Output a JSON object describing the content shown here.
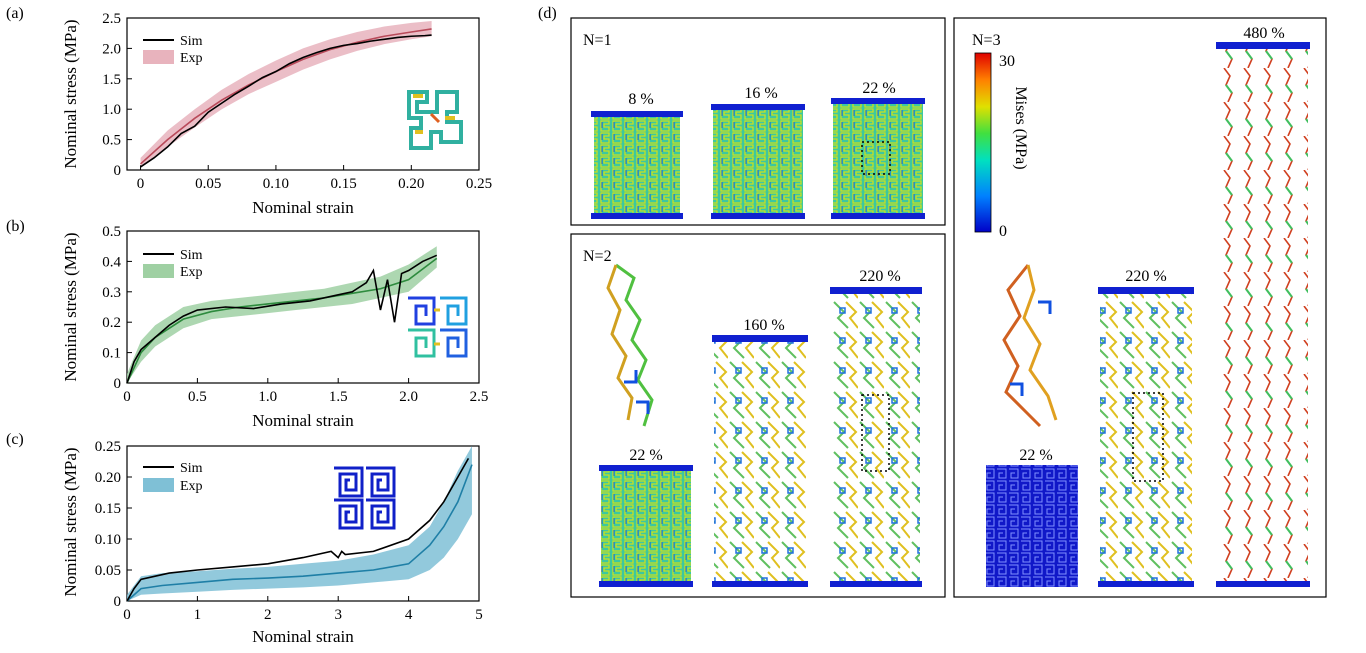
{
  "chart_data": [
    {
      "panel": "(a)",
      "type": "line",
      "xlabel": "Nominal strain",
      "ylabel": "Nominal stress (MPa)",
      "xlim": [
        -0.01,
        0.25
      ],
      "ylim": [
        0,
        2.5
      ],
      "xticks": [
        "0",
        "0.05",
        "0.10",
        "0.15",
        "0.20",
        "0.25"
      ],
      "yticks": [
        "0",
        "0.5",
        "1.0",
        "1.5",
        "2.0",
        "2.5"
      ],
      "legend": [
        "Sim",
        "Exp"
      ],
      "series": [
        {
          "name": "Sim",
          "color": "#000000",
          "x": [
            0,
            0.01,
            0.02,
            0.03,
            0.04,
            0.05,
            0.06,
            0.07,
            0.08,
            0.09,
            0.1,
            0.11,
            0.12,
            0.13,
            0.14,
            0.15,
            0.16,
            0.17,
            0.18,
            0.19,
            0.2,
            0.21,
            0.215
          ],
          "y": [
            0.05,
            0.2,
            0.38,
            0.6,
            0.72,
            0.95,
            1.1,
            1.25,
            1.38,
            1.52,
            1.62,
            1.75,
            1.85,
            1.93,
            2.0,
            2.05,
            2.08,
            2.12,
            2.15,
            2.18,
            2.2,
            2.21,
            2.22
          ]
        },
        {
          "name": "Exp",
          "color": "#b94a5a",
          "band_color": "#e8b3bd",
          "x": [
            0,
            0.02,
            0.04,
            0.06,
            0.08,
            0.1,
            0.12,
            0.14,
            0.16,
            0.18,
            0.2,
            0.215
          ],
          "y": [
            0.1,
            0.5,
            0.85,
            1.15,
            1.4,
            1.62,
            1.82,
            1.98,
            2.1,
            2.2,
            2.27,
            2.32
          ],
          "lower": [
            0.05,
            0.38,
            0.7,
            1.0,
            1.25,
            1.45,
            1.65,
            1.82,
            1.96,
            2.07,
            2.15,
            2.2
          ],
          "upper": [
            0.2,
            0.65,
            1.0,
            1.32,
            1.58,
            1.8,
            2.0,
            2.15,
            2.27,
            2.36,
            2.42,
            2.45
          ]
        }
      ]
    },
    {
      "panel": "(b)",
      "type": "line",
      "xlabel": "Nominal strain",
      "ylabel": "Nominal stress (MPa)",
      "xlim": [
        0,
        2.5
      ],
      "ylim": [
        0,
        0.5
      ],
      "xticks": [
        "0",
        "0.5",
        "1.0",
        "1.5",
        "2.0",
        "2.5"
      ],
      "yticks": [
        "0",
        "0.1",
        "0.2",
        "0.3",
        "0.4",
        "0.5"
      ],
      "legend": [
        "Sim",
        "Exp"
      ],
      "series": [
        {
          "name": "Sim",
          "color": "#000000",
          "x": [
            0,
            0.05,
            0.1,
            0.2,
            0.3,
            0.4,
            0.5,
            0.7,
            0.9,
            1.1,
            1.3,
            1.5,
            1.6,
            1.7,
            1.75,
            1.8,
            1.85,
            1.9,
            1.95,
            2.0,
            2.1,
            2.2
          ],
          "y": [
            0,
            0.07,
            0.11,
            0.15,
            0.19,
            0.22,
            0.24,
            0.25,
            0.245,
            0.26,
            0.27,
            0.29,
            0.3,
            0.33,
            0.37,
            0.24,
            0.34,
            0.2,
            0.36,
            0.37,
            0.4,
            0.42
          ]
        },
        {
          "name": "Exp",
          "color": "#2e8b3e",
          "band_color": "#9fd0a3",
          "x": [
            0,
            0.1,
            0.2,
            0.4,
            0.6,
            0.8,
            1.0,
            1.2,
            1.4,
            1.6,
            1.8,
            2.0,
            2.2
          ],
          "y": [
            0,
            0.1,
            0.15,
            0.21,
            0.235,
            0.25,
            0.26,
            0.27,
            0.28,
            0.295,
            0.31,
            0.34,
            0.41
          ],
          "lower": [
            0,
            0.07,
            0.12,
            0.18,
            0.21,
            0.22,
            0.23,
            0.24,
            0.25,
            0.26,
            0.28,
            0.3,
            0.38
          ],
          "upper": [
            0.03,
            0.14,
            0.19,
            0.25,
            0.27,
            0.28,
            0.29,
            0.3,
            0.31,
            0.33,
            0.35,
            0.39,
            0.45
          ]
        }
      ]
    },
    {
      "panel": "(c)",
      "type": "line",
      "xlabel": "Nominal strain",
      "ylabel": "Nominal stress (MPa)",
      "xlim": [
        0,
        5
      ],
      "ylim": [
        0,
        0.25
      ],
      "xticks": [
        "0",
        "1",
        "2",
        "3",
        "4",
        "5"
      ],
      "yticks": [
        "0",
        "0.05",
        "0.10",
        "0.15",
        "0.20",
        "0.25"
      ],
      "legend": [
        "Sim",
        "Exp"
      ],
      "series": [
        {
          "name": "Sim",
          "color": "#000000",
          "x": [
            0,
            0.1,
            0.2,
            0.4,
            0.6,
            1.0,
            1.5,
            2.0,
            2.5,
            2.9,
            3.0,
            3.05,
            3.1,
            3.5,
            4.0,
            4.3,
            4.5,
            4.7,
            4.85
          ],
          "y": [
            0,
            0.02,
            0.035,
            0.04,
            0.045,
            0.05,
            0.055,
            0.06,
            0.07,
            0.08,
            0.07,
            0.08,
            0.075,
            0.08,
            0.1,
            0.13,
            0.16,
            0.2,
            0.23
          ]
        },
        {
          "name": "Exp",
          "color": "#1f7fa6",
          "band_color": "#7fc0d6",
          "x": [
            0,
            0.2,
            0.5,
            1.0,
            1.5,
            2.0,
            2.5,
            3.0,
            3.5,
            4.0,
            4.3,
            4.5,
            4.7,
            4.9
          ],
          "y": [
            0,
            0.02,
            0.025,
            0.03,
            0.035,
            0.037,
            0.04,
            0.045,
            0.05,
            0.06,
            0.09,
            0.12,
            0.16,
            0.22
          ],
          "lower": [
            0,
            0.01,
            0.012,
            0.015,
            0.018,
            0.02,
            0.022,
            0.025,
            0.03,
            0.035,
            0.05,
            0.07,
            0.1,
            0.14
          ],
          "upper": [
            0.01,
            0.04,
            0.045,
            0.048,
            0.052,
            0.055,
            0.06,
            0.065,
            0.075,
            0.09,
            0.12,
            0.16,
            0.21,
            0.25
          ]
        }
      ]
    }
  ],
  "panel_d": {
    "label": "(d)",
    "colorbar": {
      "title": "Mises (MPa)",
      "max_label": "30",
      "min_label": "0"
    },
    "boxes": [
      {
        "title": "N=1",
        "strains": [
          "8 %",
          "16 %",
          "22 %"
        ]
      },
      {
        "title": "N=2",
        "strains": [
          "22 %",
          "160 %",
          "220 %"
        ]
      },
      {
        "title": "N=3",
        "strains": [
          "22 %",
          "220 %",
          "480 %"
        ]
      }
    ]
  }
}
